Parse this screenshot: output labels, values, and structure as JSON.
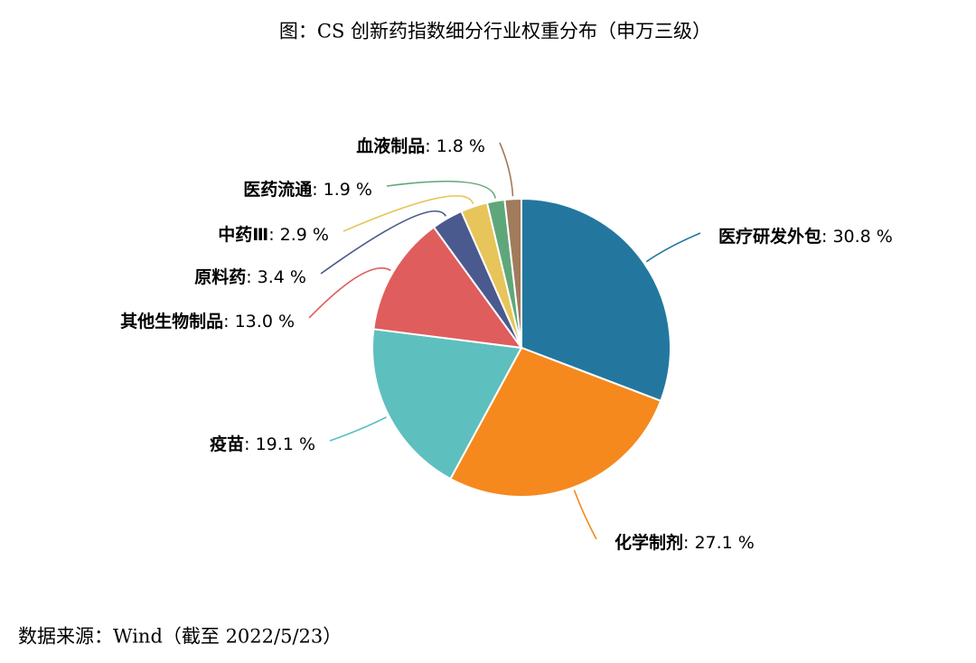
{
  "chart_data": {
    "type": "pie",
    "title": "图：CS 创新药指数细分行业权重分布（申万三级）",
    "source": "数据来源：Wind（截至 2022/5/23）",
    "categories": [
      "医疗研发外包",
      "化学制剂",
      "疫苗",
      "其他生物制品",
      "原料药",
      "中药Ⅲ",
      "医药流通",
      "血液制品"
    ],
    "values": [
      30.8,
      27.1,
      19.1,
      13.0,
      3.4,
      2.9,
      1.9,
      1.8
    ],
    "value_labels": [
      ": 30.8 %",
      ": 27.1 %",
      ": 19.1 %",
      ": 13.0 %",
      ": 3.4 %",
      ": 2.9 %",
      ": 1.9 %",
      ": 1.8 %"
    ],
    "colors": [
      "#23779f",
      "#f5891e",
      "#5ebfbf",
      "#e05d5d",
      "#4a5a8e",
      "#e7c55a",
      "#5fa77a",
      "#a07b5c"
    ]
  }
}
